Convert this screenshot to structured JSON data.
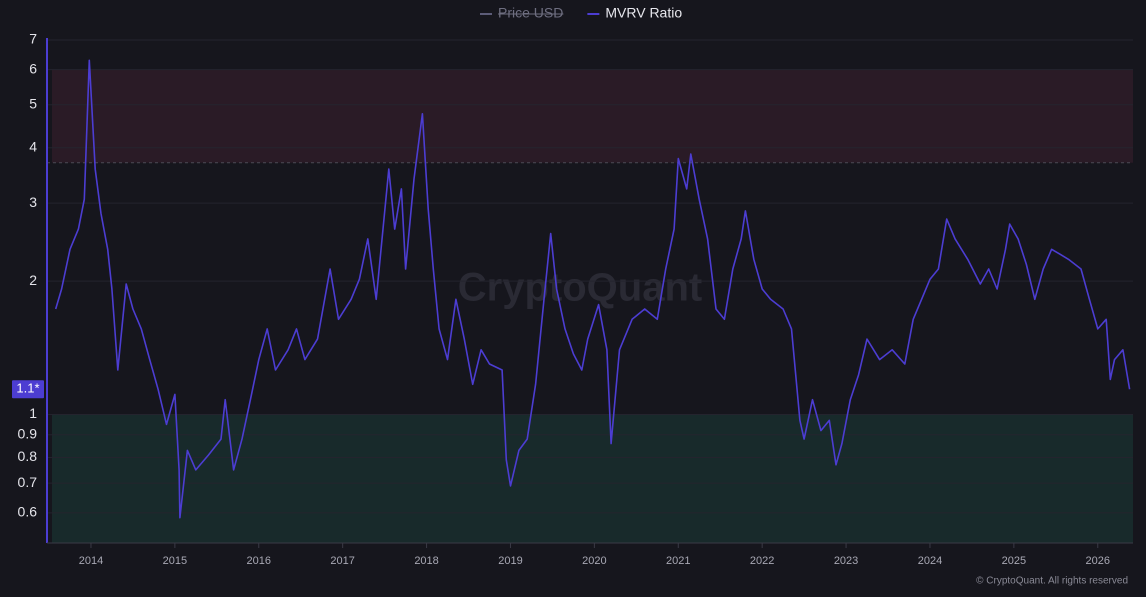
{
  "chart_data": {
    "type": "line",
    "watermark": "CryptoQuant",
    "footer": "© CryptoQuant. All rights reserved",
    "last_value_label": "1.1*",
    "log_y": true,
    "grid": true,
    "series": [
      {
        "name": "Price USD",
        "color": "#5c5c78",
        "visible": false
      },
      {
        "name": "MVRV Ratio",
        "color": "#4c3dd2",
        "visible": true,
        "values": [
          1.73,
          1.92,
          2.36,
          2.62,
          3.06,
          6.3,
          3.58,
          2.84,
          2.36,
          1.92,
          1.26,
          1.97,
          1.73,
          1.56,
          1.33,
          1.14,
          0.95,
          1.11,
          0.75,
          0.585,
          0.83,
          0.75,
          0.81,
          0.88,
          1.08,
          0.75,
          0.88,
          1.08,
          1.33,
          1.56,
          1.26,
          1.4,
          1.56,
          1.33,
          1.48,
          2.13,
          1.64,
          1.82,
          2.02,
          2.49,
          1.82,
          3.58,
          2.62,
          3.23,
          2.13,
          3.4,
          4.77,
          2.91,
          2.13,
          1.56,
          1.33,
          1.82,
          1.48,
          1.17,
          1.4,
          1.3,
          1.26,
          0.79,
          0.69,
          0.83,
          0.88,
          1.17,
          1.82,
          2.56,
          1.92,
          1.56,
          1.37,
          1.26,
          1.48,
          1.77,
          1.4,
          0.86,
          1.4,
          1.64,
          1.73,
          1.64,
          2.13,
          2.62,
          3.78,
          3.23,
          3.87,
          3.06,
          2.49,
          1.73,
          1.64,
          2.13,
          2.49,
          2.88,
          2.24,
          1.92,
          1.82,
          1.73,
          1.56,
          0.97,
          0.88,
          1.08,
          0.92,
          0.97,
          0.77,
          0.86,
          1.08,
          1.23,
          1.48,
          1.33,
          1.4,
          1.3,
          1.64,
          1.82,
          2.02,
          2.13,
          2.76,
          2.49,
          2.24,
          1.97,
          2.13,
          1.92,
          2.36,
          2.69,
          2.49,
          2.18,
          1.82,
          2.13,
          2.36,
          2.3,
          2.24,
          2.13,
          1.82,
          1.56,
          1.64,
          1.2,
          1.33,
          1.4,
          1.14
        ]
      }
    ],
    "x": [
      2013.58,
      2013.65,
      2013.75,
      2013.85,
      2013.92,
      2013.98,
      2014.05,
      2014.12,
      2014.2,
      2014.25,
      2014.32,
      2014.42,
      2014.5,
      2014.6,
      2014.7,
      2014.8,
      2014.9,
      2015.0,
      2015.05,
      2015.06,
      2015.15,
      2015.25,
      2015.4,
      2015.55,
      2015.6,
      2015.7,
      2015.8,
      2015.9,
      2016.0,
      2016.1,
      2016.2,
      2016.35,
      2016.45,
      2016.55,
      2016.7,
      2016.85,
      2016.95,
      2017.1,
      2017.2,
      2017.3,
      2017.4,
      2017.55,
      2017.62,
      2017.7,
      2017.75,
      2017.85,
      2017.95,
      2018.02,
      2018.08,
      2018.15,
      2018.25,
      2018.35,
      2018.45,
      2018.55,
      2018.65,
      2018.75,
      2018.9,
      2018.95,
      2019.0,
      2019.1,
      2019.2,
      2019.3,
      2019.4,
      2019.48,
      2019.55,
      2019.65,
      2019.75,
      2019.85,
      2019.92,
      2020.05,
      2020.15,
      2020.2,
      2020.3,
      2020.45,
      2020.6,
      2020.75,
      2020.85,
      2020.95,
      2021.0,
      2021.1,
      2021.15,
      2021.25,
      2021.35,
      2021.45,
      2021.55,
      2021.65,
      2021.75,
      2021.8,
      2021.9,
      2022.0,
      2022.1,
      2022.25,
      2022.35,
      2022.45,
      2022.5,
      2022.6,
      2022.7,
      2022.8,
      2022.88,
      2022.95,
      2023.05,
      2023.15,
      2023.25,
      2023.4,
      2023.55,
      2023.7,
      2023.8,
      2023.9,
      2024.0,
      2024.1,
      2024.2,
      2024.3,
      2024.45,
      2024.6,
      2024.7,
      2024.8,
      2024.9,
      2024.95,
      2025.05,
      2025.15,
      2025.25,
      2025.35,
      2025.45,
      2025.55,
      2025.65,
      2025.8,
      2025.9,
      2026.0,
      2026.1,
      2026.15,
      2026.2,
      2026.3,
      2026.38
    ],
    "xlim": [
      2013.476,
      2026.42
    ],
    "xticks": [
      2014,
      2015,
      2016,
      2017,
      2018,
      2019,
      2020,
      2021,
      2022,
      2023,
      2024,
      2025,
      2026
    ],
    "ylim": [
      0.513,
      7
    ],
    "yticks": [
      0.6,
      0.7,
      0.8,
      0.9,
      1,
      2,
      3,
      4,
      5,
      6,
      7
    ],
    "zones": [
      {
        "min": 3.7,
        "max": 6,
        "color": "#2a1b26"
      },
      {
        "max": 1,
        "color": "#182a2b"
      }
    ]
  }
}
